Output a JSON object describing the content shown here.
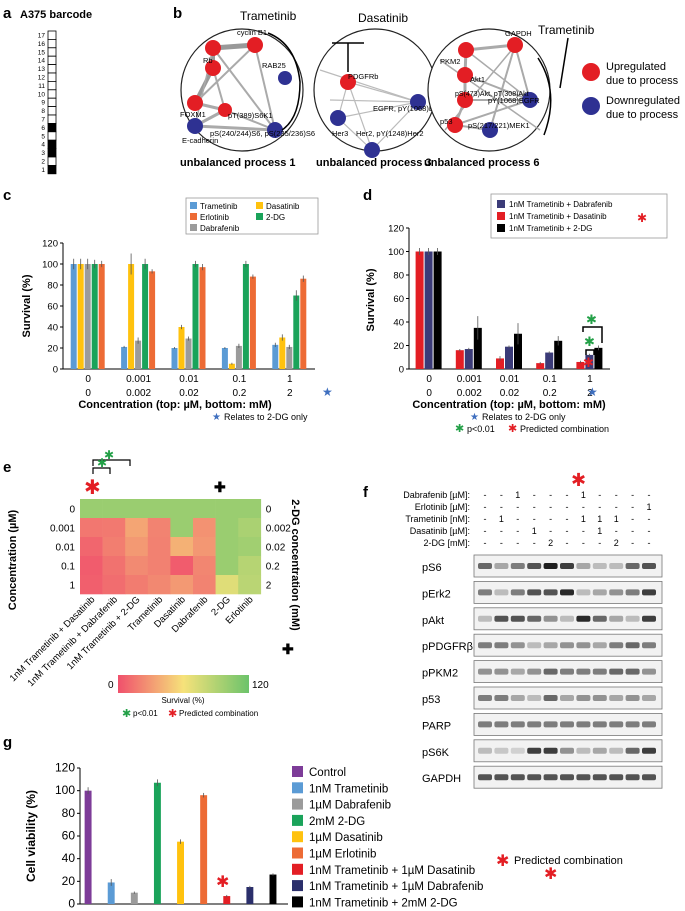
{
  "panel_labels": {
    "a": "a",
    "b": "b",
    "c": "c",
    "d": "d",
    "e": "e",
    "f": "f",
    "g": "g"
  },
  "colors": {
    "up": "#e31e24",
    "down": "#2e3192",
    "trametinib": "#5b9bd5",
    "erlotinib": "#ed6b35",
    "dabrafenib": "#9b9b9b",
    "dasatinib": "#ffc20e",
    "dg": "#1aa35a",
    "tram_dab": "#3b3b78",
    "tram_das": "#e31e24",
    "tram_dg": "#000000",
    "control": "#7d3c98",
    "dark_navy": "#2b2f6b",
    "sig_green": "#23a047",
    "sig_red": "#e31e24",
    "blue_star": "#3f6fbf"
  },
  "panel_a": {
    "title": "A375 barcode",
    "rows": [
      "17",
      "16",
      "15",
      "14",
      "13",
      "12",
      "11",
      "10",
      "9",
      "8",
      "7",
      "6",
      "5",
      "4",
      "3",
      "2",
      "1"
    ],
    "filled": [
      6,
      4,
      3,
      1
    ]
  },
  "panel_b": {
    "networks": [
      {
        "caption": "unbalanced process 1",
        "drug": "Trametinib",
        "up": [
          "cyclin B1",
          "Rb",
          "FOXM1",
          "pT(389)S6K1"
        ],
        "down": [
          "RAB25",
          "E-cadherin",
          "pS(240/244)S6, pS(235/236)S6"
        ]
      },
      {
        "caption": "unbalanced process 3",
        "drug": "Dasatinib",
        "up": [
          "PDGFRb"
        ],
        "down": [
          "Her3",
          "EGFR, pY(1068)EGFR",
          "Her2, pY(1248)Her2"
        ]
      },
      {
        "caption": "unbalanced process 6",
        "drug": "Trametinib",
        "up": [
          "GAPDH",
          "PKM2",
          "Akt1",
          "pS(473)Akt, pT(308)Akt",
          "p53"
        ],
        "down": [
          "pY(1068)EGFR",
          "pS(217/221)MEK1"
        ]
      }
    ],
    "legend": [
      {
        "label1": "Upregulated",
        "label2": "due to process",
        "color": "#e31e24"
      },
      {
        "label1": "Downregulated",
        "label2": "due to process",
        "color": "#2e3192"
      }
    ]
  },
  "panel_c": {
    "ylabel": "Survival (%)",
    "xlabel": "Concentration (top: µM, bottom: mM)",
    "top_ticks": [
      "0",
      "0.001",
      "0.01",
      "0.1",
      "1"
    ],
    "bottom_ticks": [
      "0",
      "0.002",
      "0.02",
      "0.2",
      "2"
    ],
    "footnote": "Relates to 2-DG only",
    "legend": [
      "Trametinib",
      "Dasatinib",
      "Erlotinib",
      "2-DG",
      "Dabrafenib"
    ]
  },
  "panel_d": {
    "ylabel": "Survival (%)",
    "xlabel": "Concentration (top: µM, bottom: mM)",
    "top_ticks": [
      "0",
      "0.001",
      "0.01",
      "0.1",
      "1"
    ],
    "bottom_ticks": [
      "0",
      "0.002",
      "0.02",
      "0.2",
      "2"
    ],
    "footnote": "Relates to 2-DG only",
    "sig_green": "p<0.01",
    "sig_red": "Predicted combination",
    "legend": [
      "1nM Trametinib + Dabrafenib",
      "1nM Trametinib + Dasatinib",
      "1nM Trametinib + 2-DG"
    ]
  },
  "panel_e": {
    "ylabel": "Concentration (µM)",
    "ylabel_right": "2-DG concentration (mM)",
    "left_ticks": [
      "0",
      "0.001",
      "0.01",
      "0.1",
      "1"
    ],
    "right_ticks": [
      "0",
      "0.002",
      "0.02",
      "0.2",
      "2"
    ],
    "columns": [
      "1nM Trametinib + Dasatinib",
      "1nM Trametinib + Dabrafenib",
      "1nM Trametinib + 2-DG",
      "Trametinib",
      "Dasatinib",
      "Dabrafenib",
      "2-DG",
      "Erlotinib"
    ],
    "colorbar_min": "0",
    "colorbar_max": "120",
    "colorbar_label": "Survival (%)",
    "sig_green": "p<0.01",
    "sig_red": "Predicted combination"
  },
  "panel_f": {
    "rows": [
      {
        "label": "Dabrafenib [µM]:",
        "cells": [
          "-",
          "-",
          "1",
          "-",
          "-",
          "-",
          "1",
          "-",
          "-",
          "-",
          "-"
        ]
      },
      {
        "label": "Erlotinib [µM]:",
        "cells": [
          "-",
          "-",
          "-",
          "-",
          "-",
          "-",
          "-",
          "-",
          "-",
          "-",
          "1"
        ]
      },
      {
        "label": "Trametinib [nM]:",
        "cells": [
          "-",
          "1",
          "-",
          "-",
          "-",
          "-",
          "1",
          "1",
          "1",
          "-",
          "-"
        ]
      },
      {
        "label": "Dasatinib [µM]:",
        "cells": [
          "-",
          "-",
          "-",
          "1",
          "-",
          "-",
          "-",
          "1",
          "-",
          "-",
          "-"
        ]
      },
      {
        "label": "2-DG [mM]:",
        "cells": [
          "-",
          "-",
          "-",
          "-",
          "2",
          "-",
          "-",
          "-",
          "2",
          "-",
          "-"
        ]
      }
    ],
    "blots": [
      "pS6",
      "pErk2",
      "pAkt",
      "pPDGFRβ",
      "pPKM2",
      "p53",
      "PARP",
      "pS6K",
      "GAPDH"
    ],
    "footnote": "Predicted combination"
  },
  "chart_data": [
    {
      "panel": "c",
      "type": "bar",
      "categories": [
        "0 / 0",
        "0.001 / 0.002",
        "0.01 / 0.02",
        "0.1 / 0.2",
        "1 / 2"
      ],
      "ylim": [
        0,
        120
      ],
      "yticks": [
        0,
        20,
        40,
        60,
        80,
        100,
        120
      ],
      "series": [
        {
          "name": "Trametinib",
          "values": [
            100,
            21,
            20,
            20,
            23
          ],
          "err": [
            5,
            1,
            1,
            1,
            2
          ]
        },
        {
          "name": "Dasatinib",
          "values": [
            100,
            100,
            40,
            5,
            30
          ],
          "err": [
            5,
            10,
            2,
            1,
            3
          ]
        },
        {
          "name": "Dabrafenib",
          "values": [
            100,
            27,
            29,
            22,
            21
          ],
          "err": [
            5,
            3,
            2,
            2,
            2
          ]
        },
        {
          "name": "2-DG",
          "values": [
            100,
            100,
            100,
            100,
            70
          ],
          "err": [
            4,
            5,
            3,
            3,
            5
          ]
        },
        {
          "name": "Erlotinib",
          "values": [
            100,
            93,
            97,
            88,
            86
          ],
          "err": [
            3,
            2,
            3,
            2,
            3
          ]
        }
      ]
    },
    {
      "panel": "d",
      "type": "bar",
      "categories": [
        "0 / 0",
        "0.001 / 0.002",
        "0.01 / 0.02",
        "0.1 / 0.2",
        "1 / 2"
      ],
      "ylim": [
        0,
        120
      ],
      "yticks": [
        0,
        20,
        40,
        60,
        80,
        100,
        120
      ],
      "series": [
        {
          "name": "1nM Trametinib + Dasatinib",
          "values": [
            100,
            16,
            9,
            5,
            6
          ],
          "err": [
            3,
            1,
            2,
            1,
            1
          ]
        },
        {
          "name": "1nM Trametinib + Dabrafenib",
          "values": [
            100,
            17,
            19,
            14,
            12
          ],
          "err": [
            3,
            1,
            1,
            1,
            1
          ]
        },
        {
          "name": "1nM Trametinib + 2-DG",
          "values": [
            100,
            35,
            30,
            24,
            18
          ],
          "err": [
            3,
            10,
            9,
            4,
            2
          ]
        }
      ]
    },
    {
      "panel": "e",
      "type": "heatmap",
      "rows": [
        "0",
        "0.001",
        "0.01",
        "0.1",
        "1"
      ],
      "columns": [
        "1nM Trametinib + Dasatinib",
        "1nM Trametinib + Dabrafenib",
        "1nM Trametinib + 2-DG",
        "Trametinib",
        "Dasatinib",
        "Dabrafenib",
        "2-DG",
        "Erlotinib"
      ],
      "range": [
        0,
        120
      ],
      "values": [
        [
          100,
          100,
          100,
          100,
          100,
          100,
          100,
          100
        ],
        [
          16,
          17,
          35,
          21,
          100,
          27,
          100,
          93
        ],
        [
          9,
          19,
          30,
          20,
          40,
          29,
          100,
          97
        ],
        [
          5,
          14,
          24,
          20,
          5,
          22,
          100,
          88
        ],
        [
          6,
          12,
          18,
          23,
          30,
          21,
          70,
          86
        ]
      ]
    },
    {
      "panel": "g",
      "type": "bar",
      "ylabel": "Cell viability (%)",
      "ylim": [
        0,
        120
      ],
      "yticks": [
        0,
        20,
        40,
        60,
        80,
        100,
        120
      ],
      "categories": [
        "Control",
        "1nM Trametinib",
        "1µM Dabrafenib",
        "2mM 2-DG",
        "1µM Dasatinib",
        "1µM Erlotinib",
        "1nM Trametinib + 1µM Dasatinib",
        "1nM Trametinib + 1µM Dabrafenib",
        "1nM Trametinib + 2mM 2-DG"
      ],
      "values": [
        100,
        19,
        10,
        107,
        55,
        96,
        7,
        15,
        26
      ],
      "err": [
        3,
        3,
        1,
        3,
        2,
        2,
        1,
        1,
        1
      ]
    }
  ]
}
